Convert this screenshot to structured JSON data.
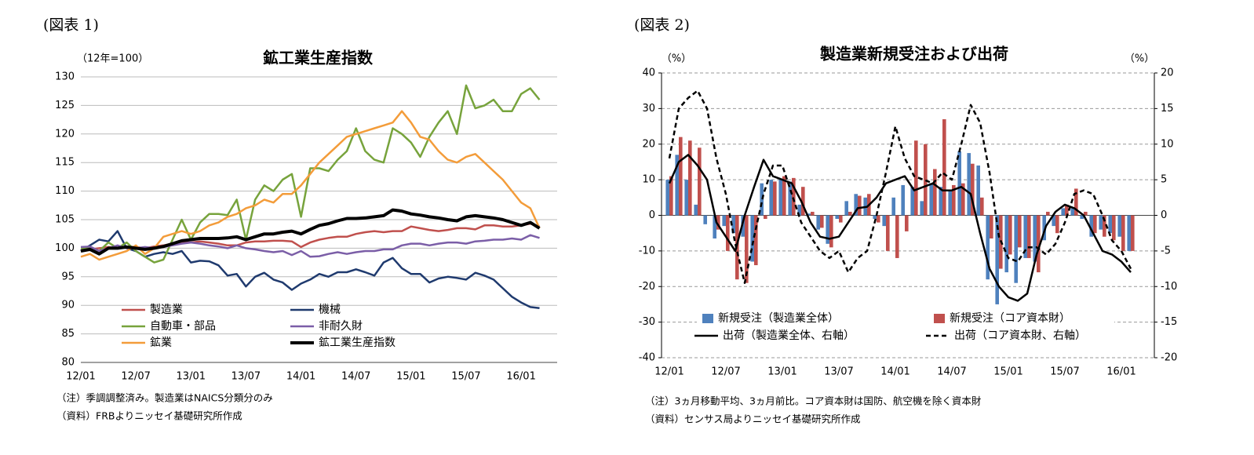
{
  "chart_data": [
    {
      "type": "line",
      "label": "(図表 1)",
      "title": "鉱工業生産指数",
      "unit_label": "（12年=100）",
      "categories": [
        "12/01",
        null,
        null,
        null,
        null,
        null,
        "12/07",
        null,
        null,
        null,
        null,
        null,
        "13/01",
        null,
        null,
        null,
        null,
        null,
        "13/07",
        null,
        null,
        null,
        null,
        null,
        "14/01",
        null,
        null,
        null,
        null,
        null,
        "14/07",
        null,
        null,
        null,
        null,
        null,
        "15/01",
        null,
        null,
        null,
        null,
        null,
        "15/07",
        null,
        null,
        null,
        null,
        null,
        "16/01",
        null,
        null
      ],
      "ylim": [
        80,
        130
      ],
      "yticks": [
        80,
        85,
        90,
        95,
        100,
        105,
        110,
        115,
        120,
        125,
        130
      ],
      "grid": true,
      "series": [
        {
          "name": "製造業",
          "color": "#c0504d",
          "values": [
            99.5,
            99.8,
            100,
            100.2,
            100.1,
            100.3,
            100.2,
            100,
            100.3,
            100.5,
            100.8,
            101,
            101,
            101.2,
            101,
            100.8,
            100.5,
            100.5,
            101,
            101.2,
            101.2,
            101.3,
            101.3,
            101.2,
            100.2,
            101,
            101.5,
            101.8,
            102,
            102,
            102.5,
            102.8,
            103,
            102.8,
            103,
            103,
            103.8,
            103.5,
            103.2,
            103,
            103.2,
            103.5,
            103.5,
            103.3,
            104,
            104,
            103.8,
            103.8,
            104,
            104.3,
            103.8
          ]
        },
        {
          "name": "機械",
          "color": "#1f3a6e",
          "values": [
            99.5,
            100.5,
            101.5,
            101.2,
            103,
            100,
            99.5,
            98.5,
            99,
            99.3,
            99,
            99.5,
            97.5,
            97.8,
            97.7,
            97,
            95.2,
            95.5,
            93.3,
            95,
            95.7,
            94.5,
            94,
            92.7,
            93.8,
            94.5,
            95.5,
            95,
            95.8,
            95.8,
            96.3,
            95.8,
            95.2,
            97.5,
            98.3,
            96.5,
            95.5,
            95.5,
            94,
            94.7,
            95,
            94.8,
            94.5,
            95.7,
            95.2,
            94.5,
            93,
            91.5,
            90.5,
            89.7,
            89.5
          ]
        },
        {
          "name": "自動車・部品",
          "color": "#77a33c",
          "values": [
            100,
            100,
            99.5,
            101,
            100,
            101,
            99.5,
            98.5,
            97.5,
            98,
            101.5,
            105,
            101.5,
            104.5,
            106,
            106,
            105.8,
            108.5,
            101.5,
            108.5,
            111,
            110,
            112,
            113,
            105.5,
            114,
            114,
            113.5,
            115.5,
            117,
            121,
            117,
            115.5,
            115,
            121,
            120,
            118.5,
            116,
            119.5,
            122,
            124,
            120,
            128.5,
            124.5,
            125,
            126,
            124,
            124,
            127,
            128,
            126
          ]
        },
        {
          "name": "非耐久財",
          "color": "#7b5ea7",
          "values": [
            100.2,
            100.3,
            99.5,
            100,
            100.5,
            100,
            100,
            100.2,
            100,
            100.2,
            100.5,
            100.8,
            101,
            100.8,
            100.5,
            100.3,
            100,
            100.5,
            100,
            99.8,
            99.5,
            99.3,
            99.5,
            98.8,
            99.5,
            98.5,
            98.6,
            99,
            99.3,
            99,
            99.3,
            99.5,
            99.5,
            99.8,
            99.8,
            100.5,
            100.8,
            100.8,
            100.5,
            100.8,
            101,
            101,
            100.8,
            101.2,
            101.3,
            101.5,
            101.5,
            101.7,
            101.5,
            102.3,
            101.8
          ]
        },
        {
          "name": "鉱業",
          "color": "#f39c3a",
          "values": [
            98.5,
            99,
            98,
            98.5,
            99,
            99.5,
            100.5,
            99,
            100,
            102,
            102.5,
            103,
            102.5,
            103,
            104,
            104.5,
            105.5,
            106,
            107,
            107.5,
            108.5,
            108,
            109.5,
            109.5,
            111,
            113,
            115,
            116.5,
            118,
            119.5,
            120,
            120.5,
            121,
            121.5,
            122,
            124,
            122,
            119.5,
            119,
            117,
            115.5,
            115,
            116,
            116.5,
            115,
            113.5,
            112,
            110,
            108,
            107,
            103.5
          ]
        },
        {
          "name": "鉱工業生産指数",
          "color": "#000000",
          "width": 4,
          "values": [
            99.5,
            99.8,
            99,
            100,
            100,
            100.2,
            100,
            99.8,
            100,
            100.3,
            100.8,
            101.3,
            101.5,
            101.7,
            101.7,
            101.7,
            101.8,
            102,
            101.5,
            102,
            102.5,
            102.5,
            102.8,
            103,
            102.5,
            103.3,
            104,
            104.3,
            104.8,
            105.2,
            105.2,
            105.3,
            105.5,
            105.7,
            106.7,
            106.5,
            106,
            105.8,
            105.5,
            105.3,
            105,
            104.8,
            105.5,
            105.7,
            105.5,
            105.3,
            105,
            104.5,
            104,
            104.5,
            103.5
          ]
        }
      ],
      "notes": [
        "（注）季調調整済み。製造業はNAICS分類分のみ",
        "（資料）FRBよりニッセイ基礎研究所作成"
      ]
    },
    {
      "type": "combo",
      "label": "(図表 2)",
      "title": "製造業新規受注および出荷",
      "ylabel": "（%）",
      "y2label": "（%）",
      "categories": [
        "12/01",
        null,
        null,
        null,
        null,
        null,
        "12/07",
        null,
        null,
        null,
        null,
        null,
        "13/01",
        null,
        null,
        null,
        null,
        null,
        "13/07",
        null,
        null,
        null,
        null,
        null,
        "14/01",
        null,
        null,
        null,
        null,
        null,
        "14/07",
        null,
        null,
        null,
        null,
        null,
        "15/01",
        null,
        null,
        null,
        null,
        null,
        "15/07",
        null,
        null,
        null,
        null,
        null,
        "16/01",
        null
      ],
      "ylim": [
        -40,
        40
      ],
      "yticks": [
        -40,
        -30,
        -20,
        -10,
        0,
        10,
        20,
        30,
        40
      ],
      "y2lim": [
        -20,
        20
      ],
      "y2ticks": [
        -20,
        -15,
        -10,
        -5,
        0,
        5,
        10,
        15,
        20
      ],
      "grid": "dashed",
      "series": [
        {
          "name": "新規受注（製造業全体）",
          "type": "bar",
          "color": "#4f81bd",
          "values": [
            10,
            17,
            10,
            3,
            -2.5,
            -6.5,
            -3,
            -5,
            -6,
            -13,
            9,
            10,
            10,
            9.5,
            3,
            0.5,
            -4,
            -8,
            -1,
            4,
            6,
            5,
            -1,
            -3,
            5,
            8.5,
            8,
            4,
            9,
            8,
            7,
            18,
            17.5,
            14,
            -18,
            -25,
            -16,
            -19,
            -12,
            -13,
            -7,
            -3,
            2,
            2,
            -1,
            -6,
            -4,
            -5,
            -6,
            -10
          ]
        },
        {
          "name": "新規受注（コア資本財）",
          "type": "bar",
          "color": "#c0504d",
          "values": [
            11,
            22,
            21,
            19,
            0,
            -4,
            -10,
            -18,
            -19,
            -14,
            -1,
            9.5,
            11,
            10.5,
            8,
            1,
            -3.5,
            -9,
            -2,
            1,
            5.5,
            6,
            -2,
            -10,
            -12,
            -4.5,
            21,
            20,
            13,
            27,
            8.5,
            9,
            14.5,
            5,
            -6.5,
            -15,
            -11,
            -9,
            -12,
            -16,
            1,
            -5,
            3,
            7.5,
            1,
            -5,
            -6,
            -7,
            -10,
            -10
          ]
        },
        {
          "name": "出荷（製造業全体、右軸）",
          "type": "line",
          "axis": "y2",
          "color": "#000000",
          "values": [
            4.5,
            7.5,
            8.5,
            7,
            5,
            -1,
            -3,
            -5,
            0,
            4,
            7.8,
            5.5,
            5,
            4.5,
            2,
            -1,
            -3,
            -3.3,
            -3,
            -1,
            1,
            1.2,
            2.5,
            4.5,
            5,
            5.5,
            3.5,
            4,
            4.5,
            3.5,
            3.5,
            4,
            3,
            -2.5,
            -7.5,
            -10,
            -11.5,
            -12,
            -11,
            -5.5,
            -1.5,
            0.5,
            1.5,
            1,
            0,
            -2.5,
            -5,
            -5.5,
            -6.5,
            -8
          ]
        },
        {
          "name": "出荷（コア資本財、右軸）",
          "type": "line",
          "axis": "y2",
          "color": "#000000",
          "line_style": "dashed",
          "values": [
            8,
            15,
            16.5,
            17.5,
            15,
            8,
            3,
            -4,
            -9.5,
            -3,
            3,
            7,
            7,
            3,
            -1,
            -3,
            -5,
            -6,
            -5,
            -8,
            -6,
            -5,
            0,
            6,
            12.5,
            8,
            5.5,
            5,
            4.5,
            6,
            5,
            10,
            15.5,
            13,
            6,
            -3,
            -6,
            -6.5,
            -4.5,
            -4.5,
            -5.5,
            -4,
            -1,
            3,
            3.5,
            3,
            0,
            -3.5,
            -5,
            -7.5
          ]
        }
      ],
      "notes": [
        "（注）3ヵ月移動平均、3ヵ月前比。コア資本財は国防、航空機を除く資本財",
        "（資料）センサス局よりニッセイ基礎研究所作成"
      ]
    }
  ]
}
